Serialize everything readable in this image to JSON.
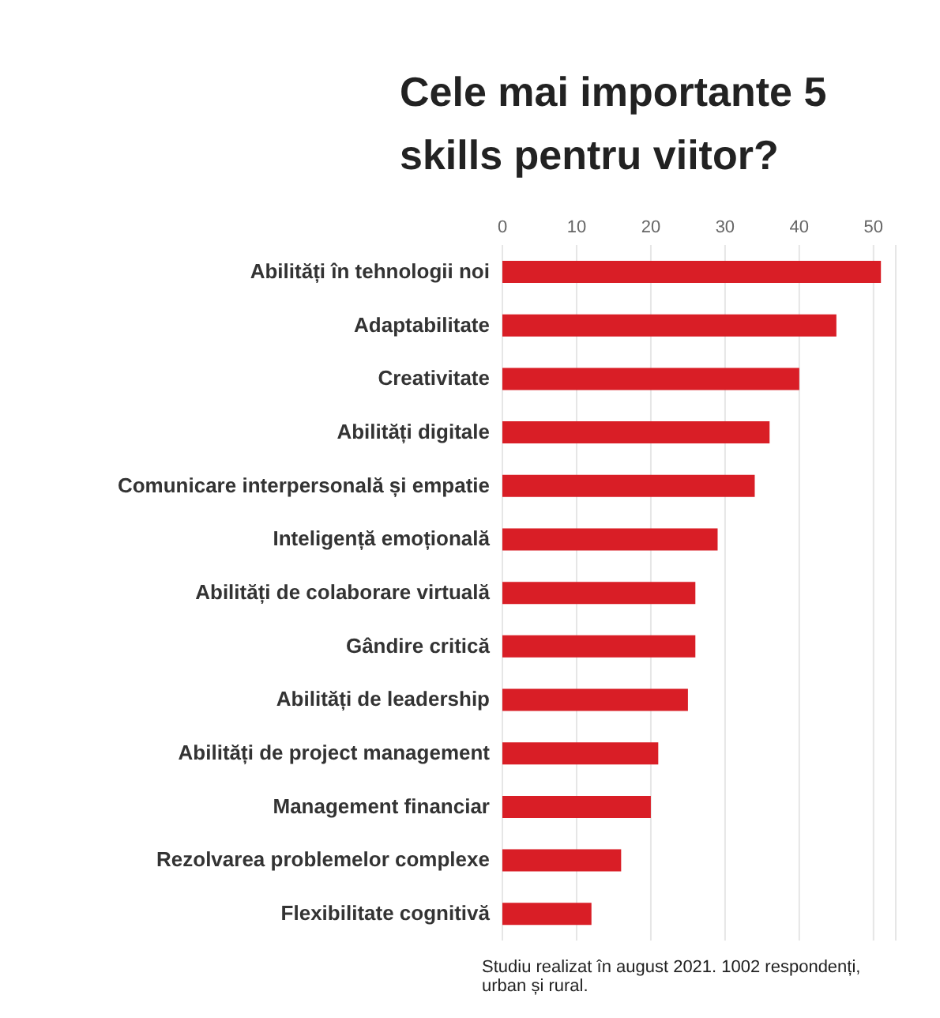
{
  "chart_data": {
    "type": "bar",
    "orientation": "horizontal",
    "title": "Cele mai importante 5 skills pentru viitor?",
    "categories": [
      "Abilități în tehnologii noi",
      "Adaptabilitate",
      "Creativitate",
      "Abilități digitale",
      "Comunicare interpersonală și empatie",
      "Inteligență emoțională",
      "Abilități de colaborare virtuală",
      "Gândire critică",
      "Abilități de leadership",
      "Abilități de project management",
      "Management financiar",
      "Rezolvarea problemelor complexe",
      "Flexibilitate cognitivă"
    ],
    "values": [
      51,
      45,
      40,
      36,
      34,
      29,
      26,
      26,
      25,
      21,
      20,
      16,
      12
    ],
    "color": "#d91e26",
    "xlim": [
      0,
      53
    ],
    "xticks": [
      0,
      10,
      20,
      30,
      40,
      50
    ],
    "grid": "x",
    "annotations": [
      "Studiu realizat în august 2021. 1002 respondenți, urban și rural."
    ]
  }
}
